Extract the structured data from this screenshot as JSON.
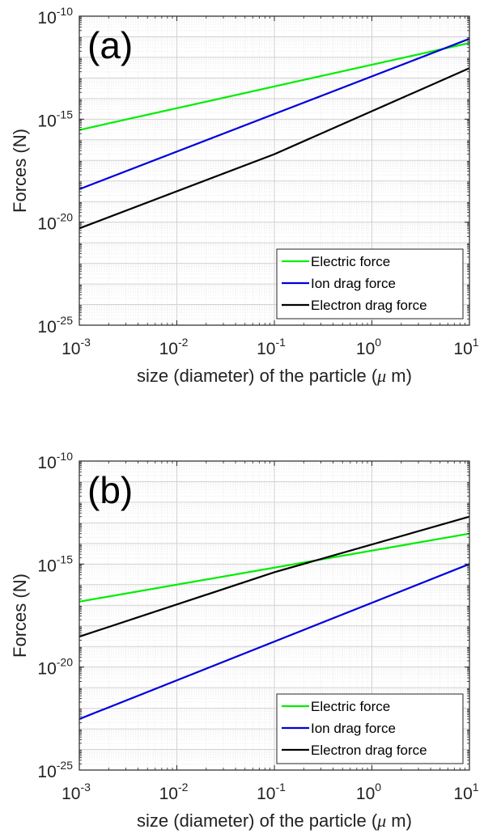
{
  "chart_data": [
    {
      "type": "line",
      "panel_label": "(a)",
      "xlabel": "size (diameter) of the particle (",
      "xlabel_mu": "μ",
      "xlabel_end": " m)",
      "ylabel": "Forces (N)",
      "xscale": "log",
      "yscale": "log",
      "xlim": [
        0.001,
        10
      ],
      "ylim": [
        1e-25,
        1e-10
      ],
      "grid": true,
      "legend_position": "bottom-right",
      "x_ticks": [
        {
          "base": "10",
          "exp": "-3",
          "value": 0.001
        },
        {
          "base": "10",
          "exp": "-2",
          "value": 0.01
        },
        {
          "base": "10",
          "exp": "-1",
          "value": 0.1
        },
        {
          "base": "10",
          "exp": "0",
          "value": 1
        },
        {
          "base": "10",
          "exp": "1",
          "value": 10
        }
      ],
      "y_ticks": [
        {
          "base": "10",
          "exp": "-10",
          "value": 1e-10
        },
        {
          "base": "10",
          "exp": "-15",
          "value": 1e-15
        },
        {
          "base": "10",
          "exp": "-20",
          "value": 1e-20
        },
        {
          "base": "10",
          "exp": "-25",
          "value": 1e-25
        }
      ],
      "series": [
        {
          "name": "Electric force",
          "color": "#00ee00",
          "x": [
            0.001,
            10
          ],
          "y": [
            3e-16,
            5e-12
          ]
        },
        {
          "name": "Ion drag force",
          "color": "#0000dd",
          "x": [
            0.001,
            10
          ],
          "y": [
            4e-19,
            8e-12
          ]
        },
        {
          "name": "Electron drag force",
          "color": "#000000",
          "x": [
            0.001,
            0.1,
            10
          ],
          "y": [
            5e-21,
            2e-17,
            3e-13
          ]
        }
      ]
    },
    {
      "type": "line",
      "panel_label": "(b)",
      "xlabel": "size (diameter) of the particle (",
      "xlabel_mu": "μ",
      "xlabel_end": " m)",
      "ylabel": "Forces (N)",
      "xscale": "log",
      "yscale": "log",
      "xlim": [
        0.001,
        10
      ],
      "ylim": [
        1e-25,
        1e-10
      ],
      "grid": true,
      "legend_position": "bottom-right",
      "x_ticks": [
        {
          "base": "10",
          "exp": "-3",
          "value": 0.001
        },
        {
          "base": "10",
          "exp": "-2",
          "value": 0.01
        },
        {
          "base": "10",
          "exp": "-1",
          "value": 0.1
        },
        {
          "base": "10",
          "exp": "0",
          "value": 1
        },
        {
          "base": "10",
          "exp": "1",
          "value": 10
        }
      ],
      "y_ticks": [
        {
          "base": "10",
          "exp": "-10",
          "value": 1e-10
        },
        {
          "base": "10",
          "exp": "-15",
          "value": 1e-15
        },
        {
          "base": "10",
          "exp": "-20",
          "value": 1e-20
        },
        {
          "base": "10",
          "exp": "-25",
          "value": 1e-25
        }
      ],
      "series": [
        {
          "name": "Electric force",
          "color": "#00ee00",
          "x": [
            0.001,
            10
          ],
          "y": [
            1.5e-17,
            3e-14
          ]
        },
        {
          "name": "Ion drag force",
          "color": "#0000dd",
          "x": [
            0.001,
            10
          ],
          "y": [
            3e-23,
            1e-15
          ]
        },
        {
          "name": "Electron drag force",
          "color": "#000000",
          "x": [
            0.001,
            0.1,
            10
          ],
          "y": [
            3e-19,
            4e-16,
            2e-13
          ]
        }
      ]
    }
  ]
}
